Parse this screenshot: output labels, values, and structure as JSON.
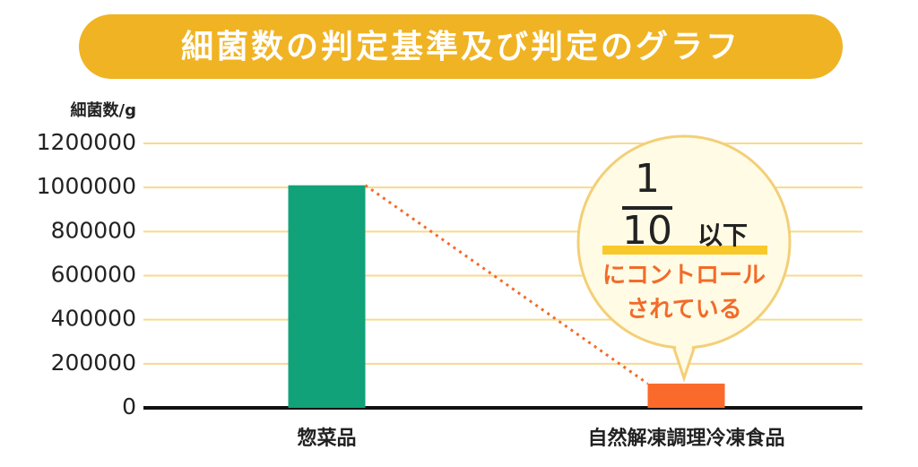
{
  "chart_data": {
    "type": "bar",
    "title": "細菌数の判定基準及び判定のグラフ",
    "y_label": "細菌数/g",
    "categories": [
      "惣菜品",
      "自然解凍調理冷凍食品"
    ],
    "values": [
      1010000,
      110000
    ],
    "colors": [
      "#12a27a",
      "#fa6a2a"
    ],
    "ylim": [
      0,
      1200000
    ],
    "yticks": [
      0,
      200000,
      400000,
      600000,
      800000,
      1000000,
      1200000
    ],
    "grid": true,
    "annotation": {
      "numerator": "1",
      "denominator": "10",
      "suffix": "以下",
      "lines": [
        "にコントロール",
        "されている"
      ]
    }
  }
}
